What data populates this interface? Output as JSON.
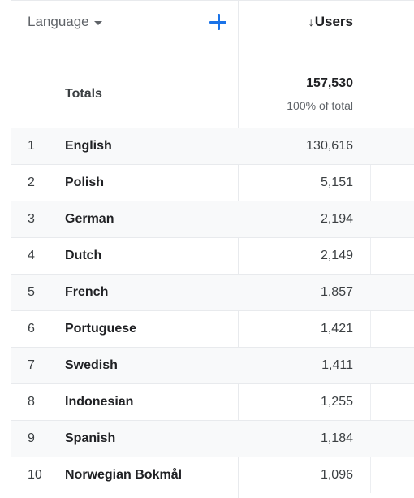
{
  "header": {
    "dimension_label": "Language",
    "add_icon": "plus-icon",
    "metric_label": "Users",
    "sort_icon": "arrow-down-icon",
    "sort_glyph": "↓"
  },
  "totals": {
    "label": "Totals",
    "value": "157,530",
    "percent": "100% of total"
  },
  "rows": [
    {
      "index": "1",
      "language": "English",
      "users": "130,616"
    },
    {
      "index": "2",
      "language": "Polish",
      "users": "5,151"
    },
    {
      "index": "3",
      "language": "German",
      "users": "2,194"
    },
    {
      "index": "4",
      "language": "Dutch",
      "users": "2,149"
    },
    {
      "index": "5",
      "language": "French",
      "users": "1,857"
    },
    {
      "index": "6",
      "language": "Portuguese",
      "users": "1,421"
    },
    {
      "index": "7",
      "language": "Swedish",
      "users": "1,411"
    },
    {
      "index": "8",
      "language": "Indonesian",
      "users": "1,255"
    },
    {
      "index": "9",
      "language": "Spanish",
      "users": "1,184"
    },
    {
      "index": "10",
      "language": "Norwegian Bokmål",
      "users": "1,096"
    }
  ],
  "colors": {
    "accent": "#1a73e8",
    "row_shade": "#f8f9fa",
    "divider": "#e8eaed"
  }
}
